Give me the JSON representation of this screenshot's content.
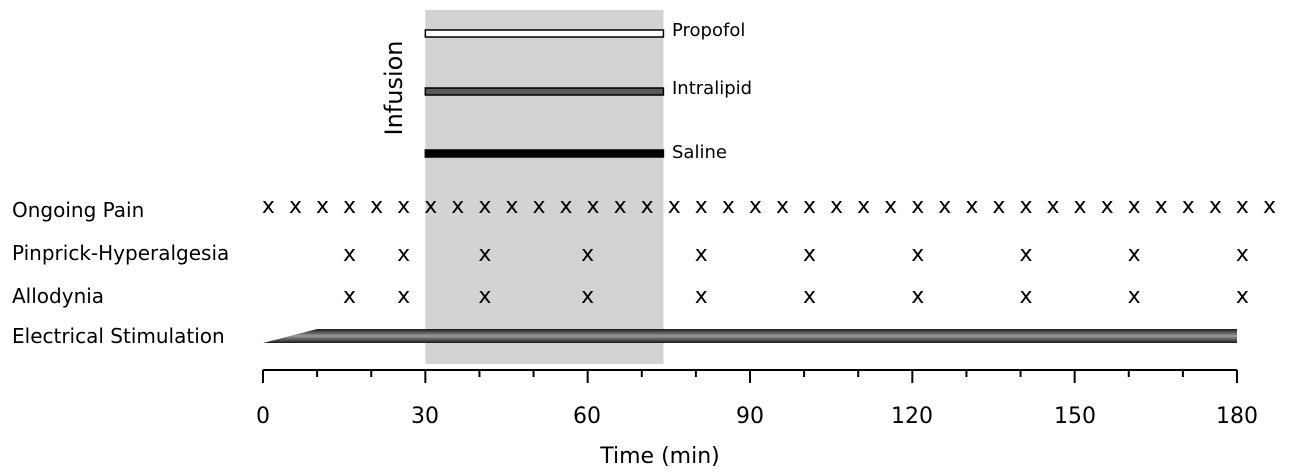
{
  "diagram": {
    "infusion_label": "Infusion",
    "infusion_window": {
      "start": 30,
      "end": 74
    },
    "infusion_bars": [
      {
        "name": "Propofol",
        "fill": "#ffffff"
      },
      {
        "name": "Intralipid",
        "fill": "#5a5a5a"
      },
      {
        "name": "Saline",
        "fill": "#000000"
      }
    ],
    "rows": [
      {
        "label": "Ongoing Pain",
        "marks": [
          1,
          6,
          11,
          16,
          21,
          26,
          31,
          36,
          41,
          46,
          51,
          56,
          61,
          66,
          71,
          76,
          81,
          86,
          91,
          96,
          101,
          106,
          111,
          116,
          121,
          126,
          131,
          136,
          141,
          146,
          151,
          156,
          161,
          166,
          171,
          176,
          181,
          186
        ]
      },
      {
        "label": "Pinprick-Hyperalgesia",
        "marks": [
          16,
          26,
          41,
          60,
          81,
          101,
          121,
          141,
          161,
          181
        ]
      },
      {
        "label": "Allodynia",
        "marks": [
          16,
          26,
          41,
          60,
          81,
          101,
          121,
          141,
          161,
          181
        ]
      },
      {
        "label": "Electrical Stimulation",
        "ramp": {
          "start": 0,
          "full": 10,
          "end": 180
        }
      }
    ],
    "mark_symbol": "x",
    "axis": {
      "min": 0,
      "max": 180,
      "ticks": [
        "0",
        "30",
        "60",
        "90",
        "120",
        "150",
        "180"
      ],
      "minor_step": 10,
      "title": "Time (min)"
    },
    "colors": {
      "shade": "#d3d3d3",
      "ramp_light": "#9a9a9a",
      "ramp_dark": "#1a1a1a",
      "ink": "#000000"
    }
  }
}
